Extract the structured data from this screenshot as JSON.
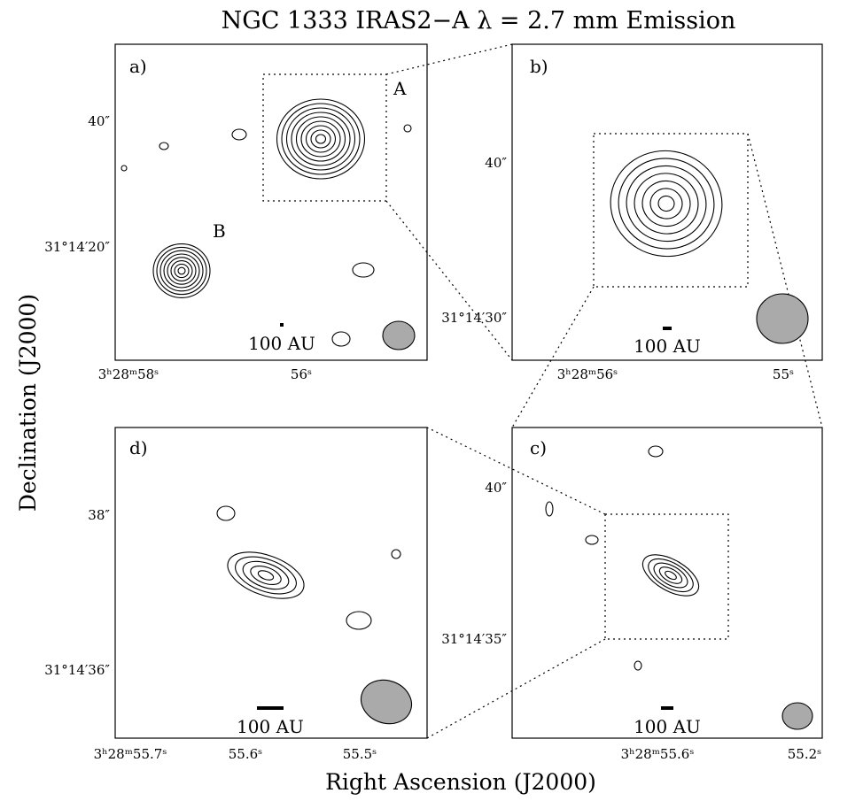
{
  "title": "NGC 1333 IRAS2−A λ = 2.7 mm Emission",
  "y_axis_label": "Declination (J2000)",
  "x_axis_label": "Right Ascension (J2000)",
  "panels": [
    {
      "letter": "a)",
      "source_labels": [
        "A",
        "B"
      ],
      "scale_bar": "100 AU",
      "yticks": [
        "40″",
        "31°14′20″"
      ],
      "xticks": [
        "3ʰ28ᵐ58ˢ",
        "56ˢ"
      ]
    },
    {
      "letter": "b)",
      "scale_bar": "100 AU",
      "yticks": [
        "40″",
        "31°14′30″"
      ],
      "xticks": [
        "3ʰ28ᵐ56ˢ",
        "55ˢ"
      ]
    },
    {
      "letter": "c)",
      "scale_bar": "100 AU",
      "yticks": [
        "40″",
        "31°14′35″"
      ],
      "xticks": [
        "3ʰ28ᵐ55.6ˢ",
        "55.2ˢ"
      ]
    },
    {
      "letter": "d)",
      "scale_bar": "100 AU",
      "yticks": [
        "38″",
        "31°14′36″"
      ],
      "xticks": [
        "3ʰ28ᵐ55.7ˢ",
        "55.6ˢ",
        "55.5ˢ"
      ]
    }
  ]
}
